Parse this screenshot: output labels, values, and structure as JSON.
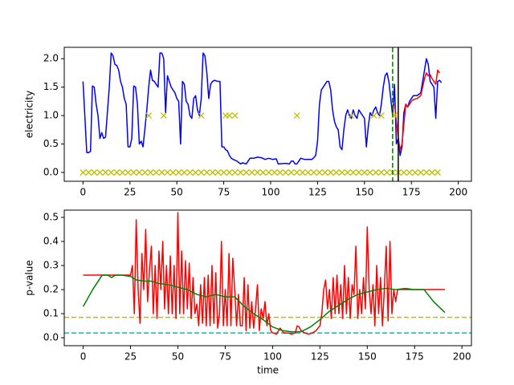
{
  "chart_data": [
    {
      "type": "line",
      "ylabel": "electricity",
      "xlim": [
        -10,
        207
      ],
      "ylim": [
        -0.155,
        2.2
      ],
      "xticks": [
        0,
        25,
        50,
        75,
        100,
        125,
        150,
        175,
        200
      ],
      "yticks": [
        {
          "value": 0,
          "label": "0.0"
        },
        {
          "value": 0.5,
          "label": "0.5"
        },
        {
          "value": 1,
          "label": "1.0"
        },
        {
          "value": 1.5,
          "label": "1.5"
        },
        {
          "value": 2,
          "label": "2.0"
        }
      ],
      "series": [
        {
          "color": "#0000ff",
          "x": [
            0,
            2,
            3,
            4,
            5,
            6,
            7,
            8,
            9,
            10,
            11,
            12,
            14,
            15,
            16,
            17,
            18,
            19,
            20,
            21,
            22,
            23,
            24,
            25,
            26,
            27,
            28,
            29,
            30,
            31,
            32,
            34,
            35,
            36,
            37,
            38,
            39,
            40,
            41,
            42,
            43,
            44,
            45,
            46,
            47,
            48,
            49,
            50,
            51,
            52,
            53,
            54,
            55,
            56,
            57,
            58,
            59,
            60,
            61,
            62,
            63,
            64,
            65,
            66,
            67,
            68,
            69,
            70,
            72,
            73,
            74,
            75,
            76,
            77,
            78,
            79,
            80,
            82,
            84,
            85,
            87,
            88,
            89,
            91,
            93,
            95,
            97,
            99,
            101,
            103,
            104,
            108,
            110,
            111,
            112,
            113,
            114,
            115,
            116,
            118,
            120,
            122,
            123,
            124,
            125,
            126,
            127,
            128,
            129,
            130,
            131,
            132,
            133,
            134,
            135,
            136,
            137,
            138,
            139,
            140,
            141,
            142,
            143,
            144,
            145,
            146,
            147,
            148,
            150,
            151,
            152,
            153,
            154,
            155,
            156,
            157,
            158,
            159,
            160,
            161,
            162,
            163,
            164,
            165,
            166,
            167,
            168,
            169,
            170,
            171,
            172,
            173,
            174,
            175,
            176,
            178,
            180,
            181,
            182,
            183,
            184,
            185,
            186,
            187,
            188,
            189,
            190,
            191
          ],
          "values": [
            1.6,
            0.35,
            0.35,
            0.37,
            1.52,
            1.5,
            1.2,
            1.0,
            0.6,
            0.7,
            0.6,
            0.62,
            1.5,
            2.1,
            2.05,
            1.9,
            1.88,
            1.8,
            1.6,
            1.5,
            1.3,
            1.2,
            0.45,
            0.45,
            0.6,
            1.52,
            1.5,
            1.2,
            0.5,
            0.55,
            0.45,
            1.1,
            1.5,
            1.8,
            1.62,
            1.6,
            1.55,
            1.5,
            2.1,
            2.1,
            2.0,
            1.05,
            1.7,
            1.6,
            1.5,
            1.45,
            1.4,
            1.3,
            1.25,
            0.5,
            1.6,
            1.55,
            1.25,
            1.2,
            1.0,
            0.95,
            1.3,
            1.35,
            1.1,
            1.0,
            1.3,
            2.1,
            2.05,
            1.75,
            1.3,
            1.55,
            1.6,
            1.62,
            1.6,
            1.6,
            0.45,
            0.45,
            0.4,
            0.38,
            0.3,
            0.25,
            0.23,
            0.2,
            0.15,
            0.17,
            0.15,
            0.2,
            0.25,
            0.25,
            0.27,
            0.26,
            0.23,
            0.25,
            0.23,
            0.24,
            0.15,
            0.16,
            0.15,
            0.2,
            0.2,
            0.15,
            0.15,
            0.2,
            0.25,
            0.23,
            0.23,
            0.23,
            0.26,
            0.3,
            0.55,
            1.2,
            1.45,
            1.5,
            1.55,
            1.6,
            1.6,
            1.45,
            1.1,
            0.9,
            0.8,
            0.75,
            0.45,
            0.4,
            0.75,
            1.0,
            1.1,
            1.0,
            0.95,
            1.1,
            1.0,
            0.95,
            1.1,
            1.05,
            0.95,
            0.45,
            0.8,
            1.05,
            1.0,
            1.1,
            1.15,
            1.05,
            1.0,
            1.2,
            1.5,
            1.7,
            1.75,
            1.6,
            1.3,
            1.0,
            1.55,
            0.5,
            0.6,
            0.3,
            0.45,
            1.05,
            1.2,
            1.15,
            1.25,
            1.3,
            1.35,
            1.35,
            1.4,
            1.6,
            1.8,
            2.0,
            1.9,
            1.6,
            1.55,
            1.5,
            0.95,
            1.6,
            1.62,
            1.58
          ]
        },
        {
          "color": "#ff0000",
          "x": [
            166,
            167,
            168,
            169,
            170,
            171,
            172,
            173,
            174,
            175,
            176,
            178,
            180,
            182,
            183,
            184,
            185,
            186,
            187,
            188,
            189,
            190
          ],
          "values": [
            1.2,
            0.9,
            0.6,
            0.4,
            0.5,
            0.85,
            1.2,
            1.15,
            1.2,
            1.25,
            1.28,
            1.3,
            1.35,
            1.65,
            1.75,
            1.7,
            1.72,
            1.65,
            1.6,
            1.55,
            1.8,
            1.75
          ]
        },
        {
          "color": "#bfbf00",
          "marker": "x",
          "x": [
            0,
            3,
            6,
            9,
            12,
            15,
            18,
            21,
            24,
            27,
            30,
            33,
            36,
            39,
            42,
            45,
            48,
            51,
            54,
            57,
            60,
            63,
            66,
            69,
            72,
            75,
            78,
            81,
            84,
            87,
            90,
            93,
            96,
            99,
            102,
            105,
            108,
            111,
            114,
            117,
            120,
            123,
            126,
            129,
            132,
            135,
            138,
            141,
            144,
            147,
            150,
            153,
            156,
            159,
            162,
            165,
            168,
            171,
            174,
            177,
            180,
            183,
            186,
            189
          ],
          "values": [
            0,
            0,
            0,
            0,
            0,
            0,
            0,
            0,
            0,
            0,
            0,
            0,
            0,
            0,
            0,
            0,
            0,
            0,
            0,
            0,
            0,
            0,
            0,
            0,
            0,
            0,
            0,
            0,
            0,
            0,
            0,
            0,
            0,
            0,
            0,
            0,
            0,
            0,
            0,
            0,
            0,
            0,
            0,
            0,
            0,
            0,
            0,
            0,
            0,
            0,
            0,
            0,
            0,
            0,
            0,
            0,
            0,
            0,
            0,
            0,
            0,
            0,
            0,
            0
          ]
        },
        {
          "color": "#bfbf00",
          "marker": "x",
          "x": [
            35,
            43,
            63,
            76,
            78,
            81,
            114,
            143,
            155,
            159,
            166
          ],
          "values": [
            1,
            1,
            1,
            1,
            1,
            1,
            1,
            1,
            1,
            1,
            1
          ]
        }
      ],
      "vlines": [
        {
          "x": 165,
          "color": "#008000",
          "dashed": true
        },
        {
          "x": 168,
          "color": "#000000",
          "dashed": false
        }
      ]
    },
    {
      "type": "line",
      "xlabel": "time",
      "ylabel": "p-value",
      "xlim": [
        -10,
        205
      ],
      "ylim": [
        -0.033,
        0.53
      ],
      "xticks": [
        0,
        25,
        50,
        75,
        100,
        125,
        150,
        175,
        200
      ],
      "yticks": [
        {
          "value": 0,
          "label": "0.0"
        },
        {
          "value": 0.1,
          "label": "0.1"
        },
        {
          "value": 0.2,
          "label": "0.2"
        },
        {
          "value": 0.3,
          "label": "0.3"
        },
        {
          "value": 0.4,
          "label": "0.4"
        },
        {
          "value": 0.5,
          "label": "0.5"
        }
      ],
      "series": [
        {
          "color": "#ff0000",
          "x": [
            0,
            25,
            26,
            27,
            28,
            29,
            30,
            31,
            32,
            33,
            34,
            35,
            36,
            37,
            38,
            39,
            40,
            41,
            42,
            43,
            44,
            45,
            46,
            47,
            48,
            49,
            50,
            51,
            52,
            53,
            54,
            55,
            56,
            57,
            58,
            59,
            60,
            61,
            62,
            63,
            64,
            65,
            66,
            67,
            68,
            69,
            70,
            71,
            72,
            73,
            74,
            75,
            76,
            77,
            78,
            79,
            80,
            81,
            82,
            83,
            84,
            85,
            86,
            87,
            88,
            89,
            90,
            91,
            92,
            93,
            94,
            95,
            96,
            97,
            98,
            99,
            100,
            102,
            104,
            106,
            108,
            110,
            112,
            113,
            114,
            115,
            117,
            119,
            121,
            123,
            125,
            126,
            127,
            128,
            129,
            130,
            131,
            132,
            133,
            134,
            135,
            136,
            137,
            138,
            139,
            140,
            141,
            142,
            143,
            144,
            145,
            146,
            147,
            148,
            149,
            150,
            151,
            152,
            153,
            154,
            155,
            156,
            157,
            158,
            159,
            160,
            161,
            162,
            163,
            164,
            165,
            166,
            191
          ],
          "values": [
            0.26,
            0.26,
            0.3,
            0.1,
            0.49,
            0.2,
            0.06,
            0.35,
            0.2,
            0.45,
            0.15,
            0.28,
            0.38,
            0.1,
            0.3,
            0.08,
            0.36,
            0.2,
            0.4,
            0.12,
            0.3,
            0.1,
            0.34,
            0.1,
            0.3,
            0.08,
            0.52,
            0.1,
            0.36,
            0.1,
            0.32,
            0.12,
            0.31,
            0.08,
            0.25,
            0.1,
            0.14,
            0.05,
            0.22,
            0.06,
            0.25,
            0.05,
            0.26,
            0.05,
            0.3,
            0.06,
            0.27,
            0.04,
            0.1,
            0.4,
            0.05,
            0.2,
            0.05,
            0.35,
            0.05,
            0.33,
            0.2,
            0.05,
            0.18,
            0.05,
            0.05,
            0.25,
            0.03,
            0.22,
            0.04,
            0.15,
            0.04,
            0.12,
            0.22,
            0.03,
            0.12,
            0.08,
            0.15,
            0.05,
            0.1,
            0.03,
            0.02,
            0.015,
            0.04,
            0.02,
            0.02,
            0.015,
            0.02,
            0.05,
            0.045,
            0.03,
            0.02,
            0.015,
            0.02,
            0.03,
            0.05,
            0.1,
            0.2,
            0.24,
            0.12,
            0.2,
            0.08,
            0.25,
            0.1,
            0.26,
            0.1,
            0.22,
            0.08,
            0.3,
            0.1,
            0.25,
            0.08,
            0.22,
            0.18,
            0.38,
            0.08,
            0.2,
            0.1,
            0.25,
            0.12,
            0.46,
            0.2,
            0.1,
            0.22,
            0.05,
            0.3,
            0.1,
            0.25,
            0.05,
            0.2,
            0.38,
            0.07,
            0.4,
            0.1,
            0.2,
            0.15,
            0.2,
            0.2
          ]
        },
        {
          "color": "#008000",
          "x": [
            0,
            5,
            10,
            13,
            15,
            17,
            20,
            25,
            28,
            32,
            36,
            40,
            45,
            50,
            55,
            60,
            65,
            70,
            75,
            80,
            85,
            90,
            95,
            100,
            105,
            110,
            115,
            120,
            125,
            130,
            135,
            140,
            145,
            150,
            155,
            160,
            165,
            170,
            175,
            180,
            185,
            191
          ],
          "values": [
            0.13,
            0.2,
            0.26,
            0.26,
            0.25,
            0.26,
            0.26,
            0.255,
            0.24,
            0.235,
            0.235,
            0.225,
            0.22,
            0.21,
            0.2,
            0.18,
            0.17,
            0.18,
            0.17,
            0.17,
            0.13,
            0.1,
            0.075,
            0.045,
            0.03,
            0.025,
            0.025,
            0.045,
            0.075,
            0.11,
            0.135,
            0.16,
            0.18,
            0.19,
            0.2,
            0.205,
            0.2,
            0.205,
            0.2,
            0.2,
            0.15,
            0.105
          ]
        }
      ],
      "hlines": [
        {
          "y": 0.085,
          "color": "#bfbf00",
          "dashed": true
        },
        {
          "y": 0.02,
          "color": "#00bfbf",
          "dashed": true
        }
      ]
    }
  ]
}
